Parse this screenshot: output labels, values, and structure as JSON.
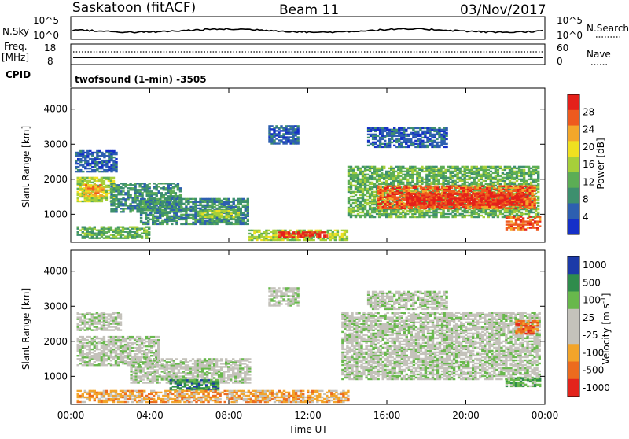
{
  "header": {
    "station": "Saskatoon (fitACF)",
    "beam": "Beam 11",
    "date": "03/Nov/2017"
  },
  "top_panels": {
    "nsky_label": "N.Sky",
    "nsky_ticks": [
      "10^5",
      "10^0"
    ],
    "nsearch_label": "N.Search",
    "nsearch_ticks": [
      "10^5",
      "10^0"
    ],
    "freq_label_1": "Freq.",
    "freq_label_2": "[MHz]",
    "freq_ticks": [
      "18",
      "8"
    ],
    "nave_label": "Nave",
    "nave_ticks": [
      "60",
      "0"
    ],
    "cpid_label": "CPID",
    "cpid_text": "twofsound (1-min) -3505"
  },
  "colors": {
    "power": [
      "#1530c8",
      "#2d5fb0",
      "#3d8f6e",
      "#5cad55",
      "#a6cf3a",
      "#f0e020",
      "#f3a72a",
      "#ee5a1e",
      "#e5201a"
    ],
    "velocity": [
      "#1c3aa8",
      "#2f8c4c",
      "#68b84c",
      "#c4c2bb",
      "#c4c2bb",
      "#f2a42a",
      "#ec6b1e",
      "#e3241c"
    ]
  },
  "chart_data": [
    {
      "type": "heatmap",
      "name": "power",
      "xlabel": "",
      "ylabel": "Slant Range [km]",
      "xlim": [
        "00:00",
        "24:00"
      ],
      "ylim": [
        200,
        4600
      ],
      "yticks": [
        "1000",
        "2000",
        "3000",
        "4000"
      ],
      "xticks": [
        "00:00",
        "04:00",
        "08:00",
        "12:00",
        "16:00",
        "20:00",
        "00:00"
      ],
      "colorbar_label": "Power [dB]",
      "colorbar_ticks": [
        "4",
        "8",
        "12",
        "16",
        "20",
        "24",
        "28"
      ],
      "regions": [
        {
          "t0": 0.3,
          "t1": 2.2,
          "r0": 1350,
          "r1": 2050,
          "level": 4
        },
        {
          "t0": 0.6,
          "t1": 1.6,
          "r0": 1500,
          "r1": 1850,
          "level": 6
        },
        {
          "t0": 2.0,
          "t1": 5.5,
          "r0": 1050,
          "r1": 1900,
          "level": 2
        },
        {
          "t0": 3.5,
          "t1": 9.0,
          "r0": 700,
          "r1": 1450,
          "level": 2
        },
        {
          "t0": 6.5,
          "t1": 8.5,
          "r0": 900,
          "r1": 1100,
          "level": 4
        },
        {
          "t0": 0.3,
          "t1": 4.0,
          "r0": 300,
          "r1": 650,
          "level": 3
        },
        {
          "t0": 9.0,
          "t1": 14.0,
          "r0": 250,
          "r1": 550,
          "level": 4
        },
        {
          "t0": 10.5,
          "t1": 13.0,
          "r0": 330,
          "r1": 480,
          "level": 8
        },
        {
          "t0": 14.0,
          "t1": 23.7,
          "r0": 900,
          "r1": 2350,
          "level": 3
        },
        {
          "t0": 15.5,
          "t1": 23.5,
          "r0": 1150,
          "r1": 1800,
          "level": 7
        },
        {
          "t0": 17.0,
          "t1": 23.0,
          "r0": 1250,
          "r1": 1600,
          "level": 8
        },
        {
          "t0": 22.0,
          "t1": 23.7,
          "r0": 550,
          "r1": 950,
          "level": 7
        },
        {
          "t0": 0.2,
          "t1": 2.3,
          "r0": 2200,
          "r1": 2800,
          "level": 1
        },
        {
          "t0": 10.0,
          "t1": 11.5,
          "r0": 3000,
          "r1": 3500,
          "level": 1
        },
        {
          "t0": 15.0,
          "t1": 19.0,
          "r0": 2900,
          "r1": 3450,
          "level": 1
        }
      ]
    },
    {
      "type": "heatmap",
      "name": "velocity",
      "xlabel": "Time UT",
      "ylabel": "Slant Range [km]",
      "xlim": [
        "00:00",
        "24:00"
      ],
      "ylim": [
        200,
        4600
      ],
      "yticks": [
        "1000",
        "2000",
        "3000",
        "4000"
      ],
      "xticks": [
        "00:00",
        "04:00",
        "08:00",
        "12:00",
        "16:00",
        "20:00",
        "00:00"
      ],
      "colorbar_label": "Velocity [m s^-1]",
      "colorbar_ticks": [
        "1000",
        "500",
        "100",
        "25",
        "-25",
        "-100",
        "-500",
        "-1000"
      ],
      "regions": [
        {
          "t0": 0.3,
          "t1": 4.5,
          "r0": 1300,
          "r1": 2150,
          "level": 3
        },
        {
          "t0": 3.0,
          "t1": 9.0,
          "r0": 800,
          "r1": 1500,
          "level": 3
        },
        {
          "t0": 5.0,
          "t1": 7.5,
          "r0": 600,
          "r1": 900,
          "level": 1
        },
        {
          "t0": 0.3,
          "t1": 14.0,
          "r0": 250,
          "r1": 600,
          "level": 5
        },
        {
          "t0": 0.3,
          "t1": 2.5,
          "r0": 2300,
          "r1": 2800,
          "level": 3
        },
        {
          "t0": 13.7,
          "t1": 23.7,
          "r0": 900,
          "r1": 2800,
          "level": 3
        },
        {
          "t0": 22.0,
          "t1": 23.7,
          "r0": 700,
          "r1": 950,
          "level": 2
        },
        {
          "t0": 22.5,
          "t1": 23.7,
          "r0": 2200,
          "r1": 2600,
          "level": 6
        },
        {
          "t0": 10.0,
          "t1": 11.5,
          "r0": 3000,
          "r1": 3500,
          "level": 3
        },
        {
          "t0": 15.0,
          "t1": 19.0,
          "r0": 2900,
          "r1": 3400,
          "level": 3
        }
      ]
    }
  ]
}
